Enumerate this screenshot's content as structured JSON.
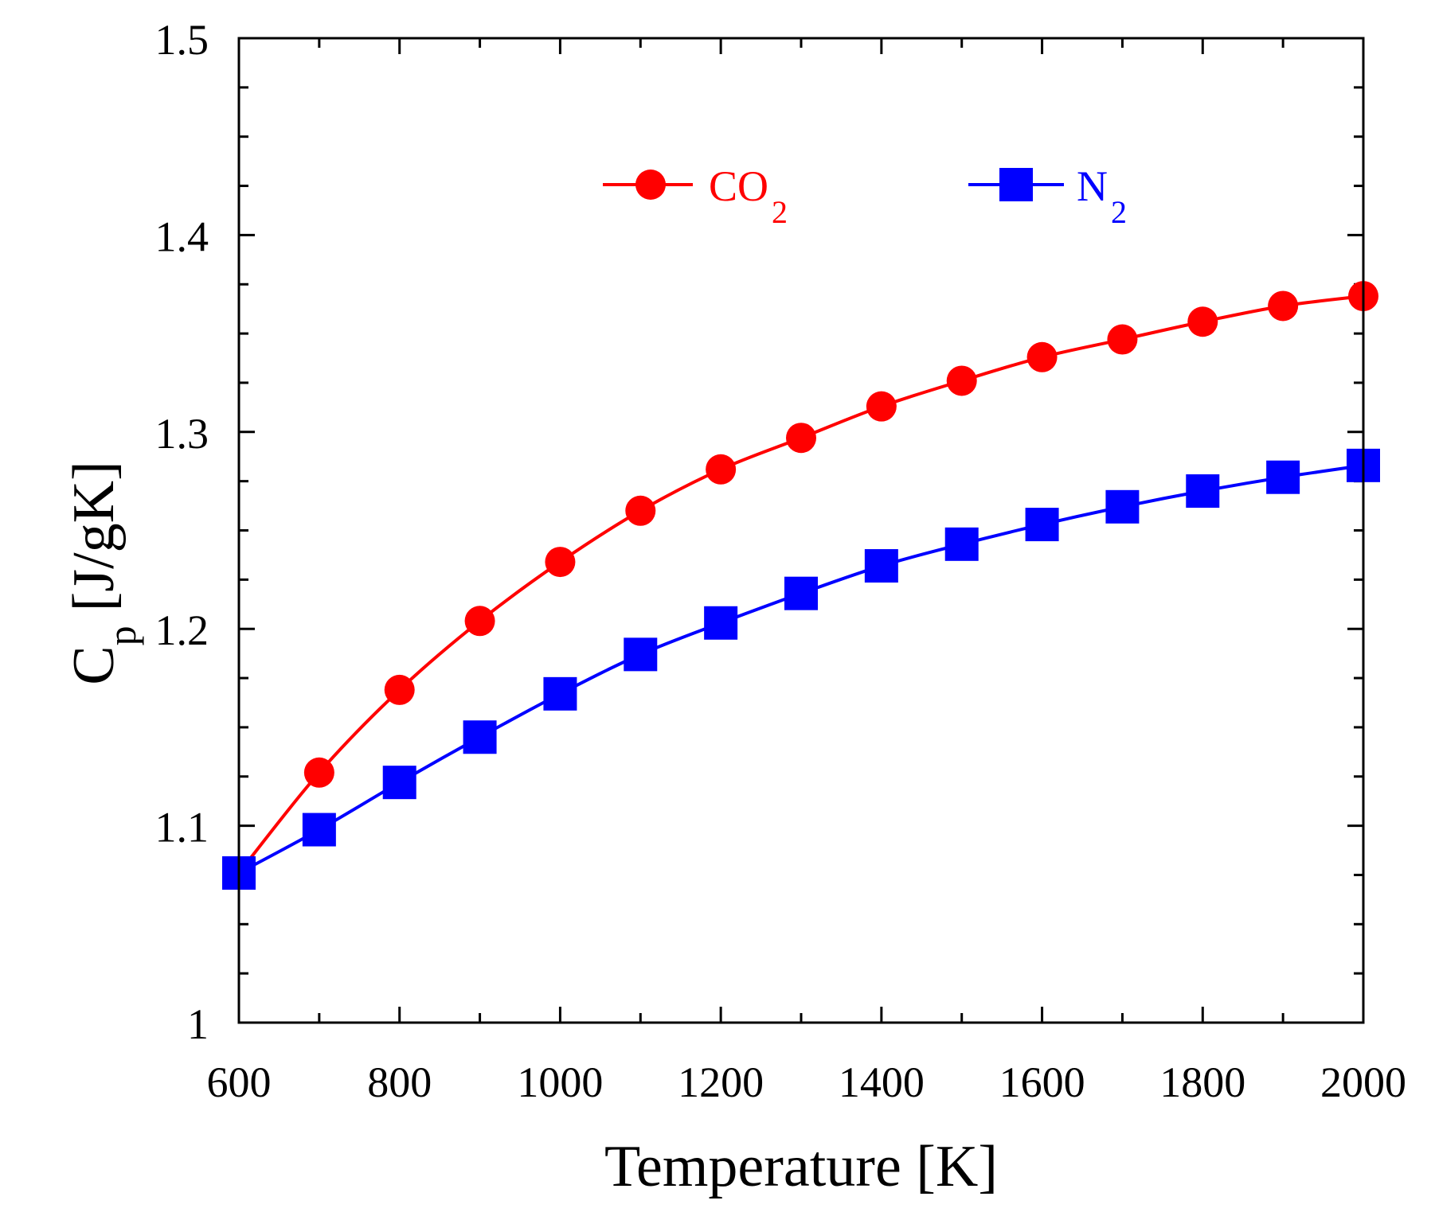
{
  "chart_data": {
    "type": "line",
    "title": "",
    "xlabel": "Temperature [K]",
    "ylabel_main": "C",
    "ylabel_sub": "p",
    "ylabel_unit": "[J/gK]",
    "xlim": [
      600,
      2000
    ],
    "ylim": [
      1.0,
      1.5
    ],
    "xticks": [
      600,
      800,
      1000,
      1200,
      1400,
      1600,
      1800,
      2000
    ],
    "xtick_labels": [
      "600",
      "800",
      "1000",
      "1200",
      "1400",
      "1600",
      "1800",
      "2000"
    ],
    "yticks": [
      1.0,
      1.1,
      1.2,
      1.3,
      1.4,
      1.5
    ],
    "ytick_labels": [
      "1",
      "1.1",
      "1.2",
      "1.3",
      "1.4",
      "1.5"
    ],
    "grid": false,
    "legend_position": "top",
    "x": [
      600,
      700,
      800,
      900,
      1000,
      1100,
      1200,
      1300,
      1400,
      1500,
      1600,
      1700,
      1800,
      1900,
      2000
    ],
    "series": [
      {
        "name": "CO2",
        "label_main": "CO",
        "label_sub": "2",
        "color": "#ff0000",
        "marker": "circle",
        "values": [
          1.076,
          1.127,
          1.169,
          1.204,
          1.234,
          1.26,
          1.281,
          1.297,
          1.313,
          1.326,
          1.338,
          1.347,
          1.356,
          1.364,
          1.369
        ]
      },
      {
        "name": "N2",
        "label_main": "N",
        "label_sub": "2",
        "color": "#0000ff",
        "marker": "square",
        "values": [
          1.076,
          1.098,
          1.122,
          1.145,
          1.167,
          1.187,
          1.203,
          1.218,
          1.232,
          1.243,
          1.253,
          1.262,
          1.27,
          1.277,
          1.283
        ]
      }
    ]
  }
}
